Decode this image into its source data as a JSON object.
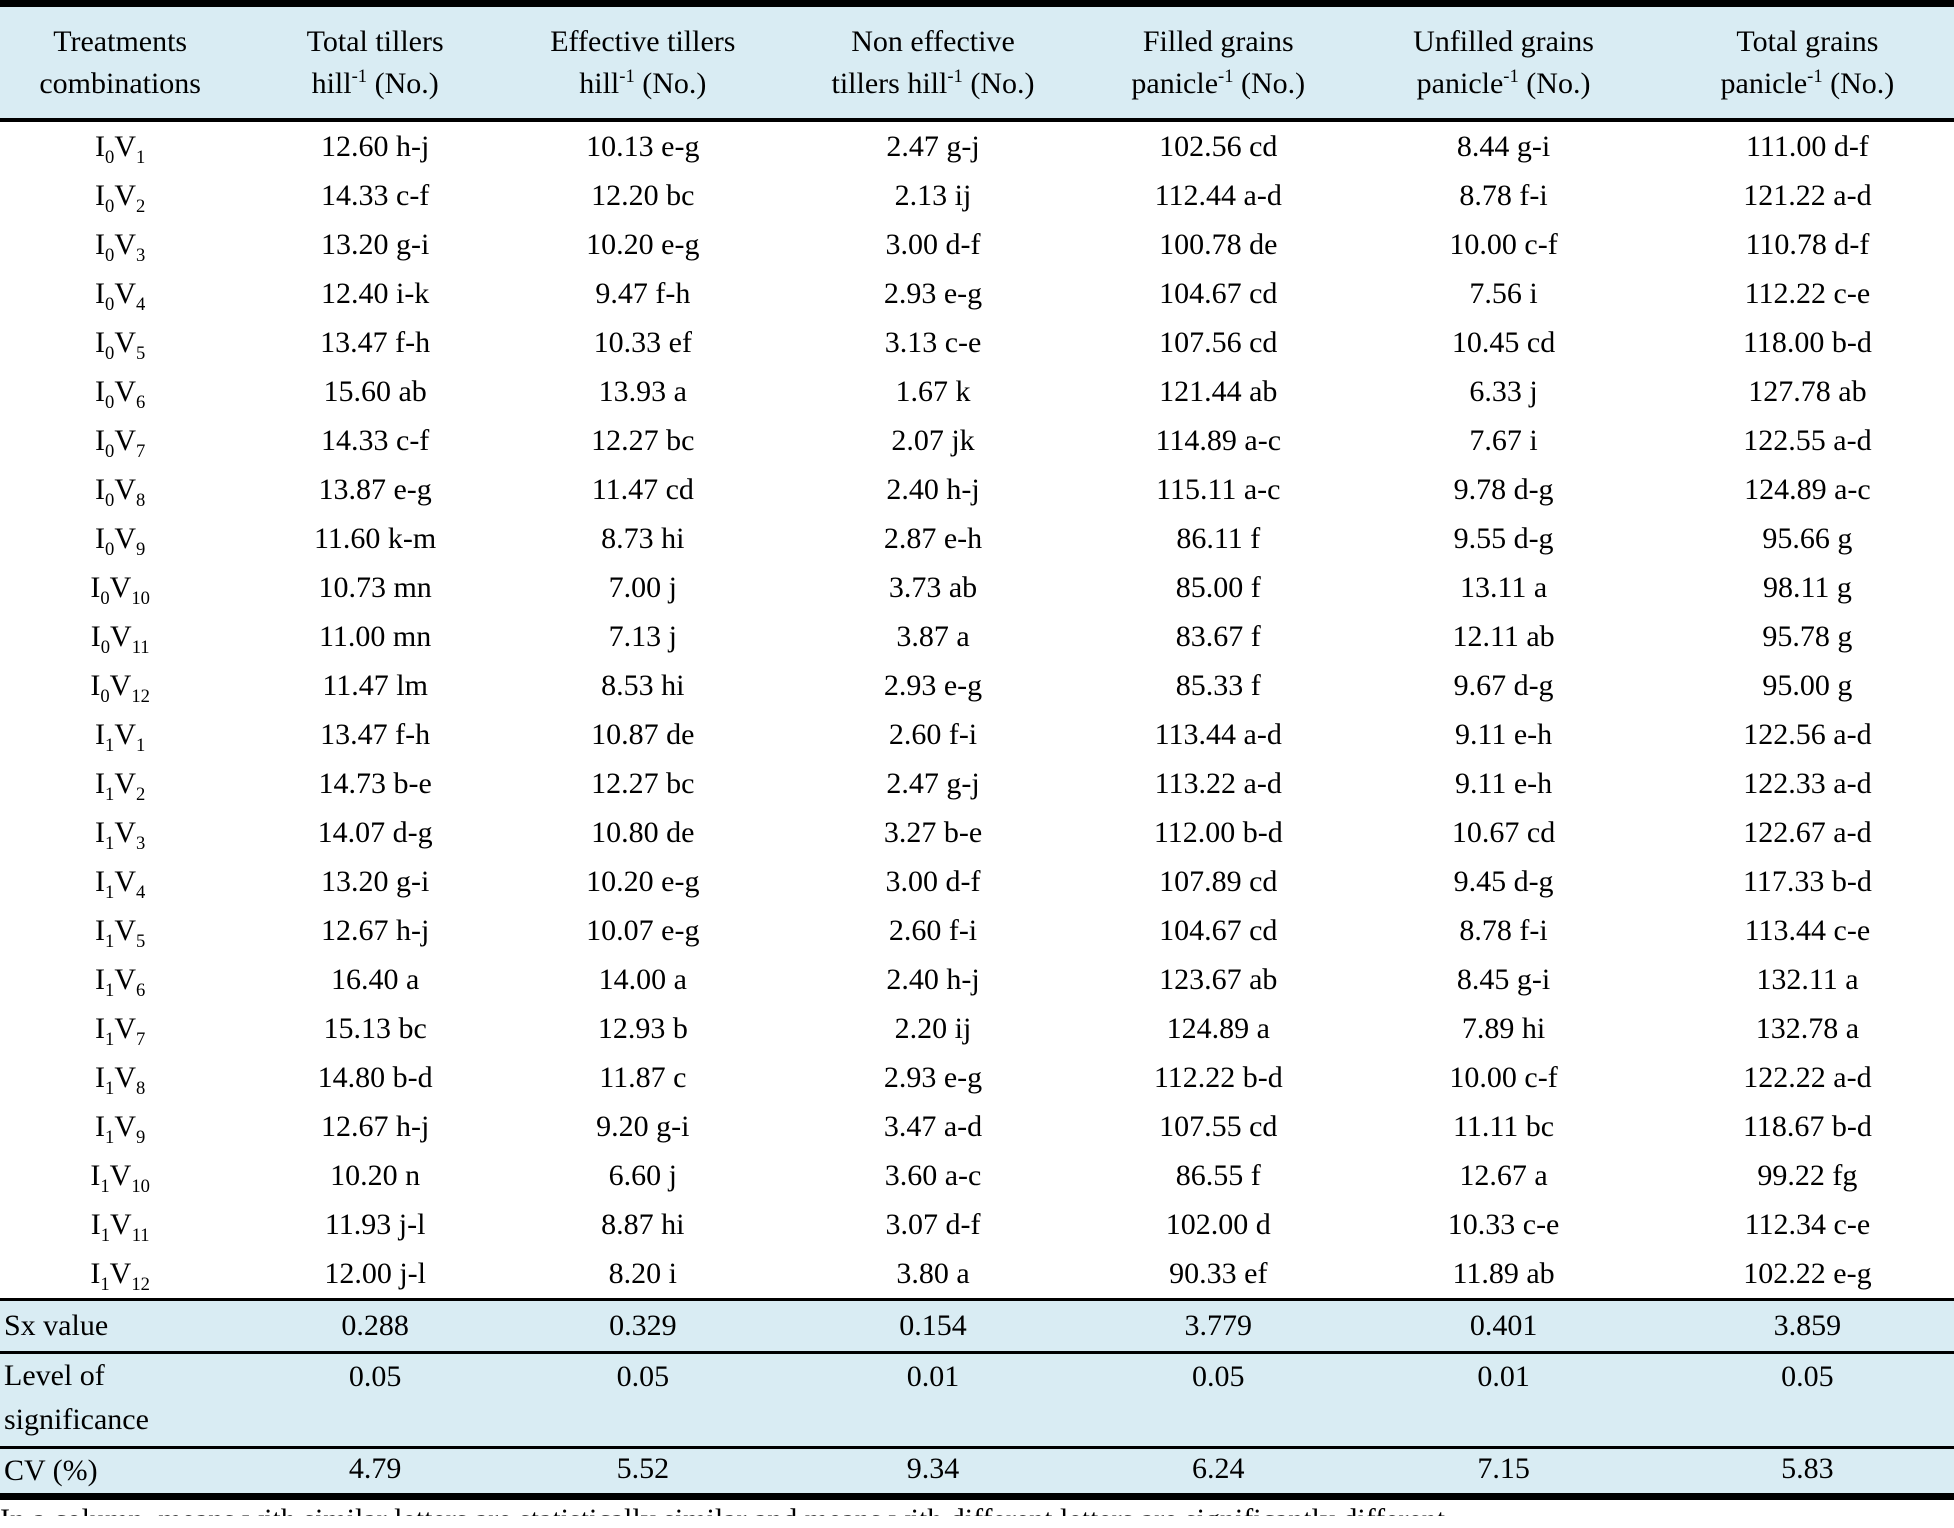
{
  "colors": {
    "header_bg": "#d9ecf3",
    "body_bg": "#ffffff",
    "rule": "#000000",
    "text": "#000000"
  },
  "table": {
    "columns": [
      {
        "line1": "Treatments",
        "line2": "combinations"
      },
      {
        "line1": "Total tillers",
        "line2": "hill{-1} (No.)"
      },
      {
        "line1": "Effective tillers",
        "line2": "hill{-1} (No.)"
      },
      {
        "line1": "Non effective",
        "line2": "tillers hill{-1} (No.)"
      },
      {
        "line1": "Filled grains",
        "line2": "panicle{-1} (No.)"
      },
      {
        "line1": "Unfilled grains",
        "line2": "panicle{-1} (No.)"
      },
      {
        "line1": "Total grains",
        "line2": "panicle{-1} (No.)"
      }
    ],
    "rows": [
      {
        "treatment": "I0V1",
        "values": [
          "12.60 h-j",
          "10.13 e-g",
          "2.47 g-j",
          "102.56 cd",
          "8.44 g-i",
          "111.00 d-f"
        ]
      },
      {
        "treatment": "I0V2",
        "values": [
          "14.33 c-f",
          "12.20 bc",
          "2.13 ij",
          "112.44 a-d",
          "8.78 f-i",
          "121.22 a-d"
        ]
      },
      {
        "treatment": "I0V3",
        "values": [
          "13.20 g-i",
          "10.20 e-g",
          "3.00 d-f",
          "100.78 de",
          "10.00 c-f",
          "110.78 d-f"
        ]
      },
      {
        "treatment": "I0V4",
        "values": [
          "12.40 i-k",
          "9.47 f-h",
          "2.93 e-g",
          "104.67 cd",
          "7.56 i",
          "112.22 c-e"
        ]
      },
      {
        "treatment": "I0V5",
        "values": [
          "13.47 f-h",
          "10.33 ef",
          "3.13 c-e",
          "107.56 cd",
          "10.45 cd",
          "118.00 b-d"
        ]
      },
      {
        "treatment": "I0V6",
        "values": [
          "15.60 ab",
          "13.93 a",
          "1.67 k",
          "121.44 ab",
          "6.33 j",
          "127.78 ab"
        ]
      },
      {
        "treatment": "I0V7",
        "values": [
          "14.33 c-f",
          "12.27 bc",
          "2.07 jk",
          "114.89 a-c",
          "7.67 i",
          "122.55 a-d"
        ]
      },
      {
        "treatment": "I0V8",
        "values": [
          "13.87 e-g",
          "11.47 cd",
          "2.40 h-j",
          "115.11 a-c",
          "9.78 d-g",
          "124.89 a-c"
        ]
      },
      {
        "treatment": "I0V9",
        "values": [
          "11.60 k-m",
          "8.73 hi",
          "2.87 e-h",
          "86.11 f",
          "9.55 d-g",
          "95.66 g"
        ]
      },
      {
        "treatment": "I0V10",
        "values": [
          "10.73 mn",
          "7.00 j",
          "3.73 ab",
          "85.00 f",
          "13.11 a",
          "98.11 g"
        ]
      },
      {
        "treatment": "I0V11",
        "values": [
          "11.00 mn",
          "7.13 j",
          "3.87 a",
          "83.67 f",
          "12.11 ab",
          "95.78 g"
        ]
      },
      {
        "treatment": "I0V12",
        "values": [
          "11.47 lm",
          "8.53 hi",
          "2.93 e-g",
          "85.33 f",
          "9.67 d-g",
          "95.00 g"
        ]
      },
      {
        "treatment": "I1V1",
        "values": [
          "13.47 f-h",
          "10.87 de",
          "2.60 f-i",
          "113.44 a-d",
          "9.11 e-h",
          "122.56 a-d"
        ]
      },
      {
        "treatment": "I1V2",
        "values": [
          "14.73 b-e",
          "12.27 bc",
          "2.47 g-j",
          "113.22 a-d",
          "9.11 e-h",
          "122.33 a-d"
        ]
      },
      {
        "treatment": "I1V3",
        "values": [
          "14.07 d-g",
          "10.80 de",
          "3.27 b-e",
          "112.00 b-d",
          "10.67 cd",
          "122.67 a-d"
        ]
      },
      {
        "treatment": "I1V4",
        "values": [
          "13.20 g-i",
          "10.20 e-g",
          "3.00 d-f",
          "107.89 cd",
          "9.45 d-g",
          "117.33 b-d"
        ]
      },
      {
        "treatment": "I1V5",
        "values": [
          "12.67 h-j",
          "10.07 e-g",
          "2.60 f-i",
          "104.67 cd",
          "8.78 f-i",
          "113.44 c-e"
        ]
      },
      {
        "treatment": "I1V6",
        "values": [
          "16.40 a",
          "14.00 a",
          "2.40 h-j",
          "123.67 ab",
          "8.45 g-i",
          "132.11 a"
        ]
      },
      {
        "treatment": "I1V7",
        "values": [
          "15.13 bc",
          "12.93 b",
          "2.20 ij",
          "124.89 a",
          "7.89 hi",
          "132.78 a"
        ]
      },
      {
        "treatment": "I1V8",
        "values": [
          "14.80 b-d",
          "11.87 c",
          "2.93 e-g",
          "112.22 b-d",
          "10.00 c-f",
          "122.22 a-d"
        ]
      },
      {
        "treatment": "I1V9",
        "values": [
          "12.67 h-j",
          "9.20 g-i",
          "3.47 a-d",
          "107.55 cd",
          "11.11 bc",
          "118.67 b-d"
        ]
      },
      {
        "treatment": "I1V10",
        "values": [
          "10.20 n",
          "6.60 j",
          "3.60 a-c",
          "86.55 f",
          "12.67 a",
          "99.22 fg"
        ]
      },
      {
        "treatment": "I1V11",
        "values": [
          "11.93 j-l",
          "8.87 hi",
          "3.07 d-f",
          "102.00 d",
          "10.33 c-e",
          "112.34 c-e"
        ]
      },
      {
        "treatment": "I1V12",
        "values": [
          "12.00 j-l",
          "8.20 i",
          "3.80 a",
          "90.33 ef",
          "11.89 ab",
          "102.22 e-g"
        ]
      }
    ],
    "footer_rows": [
      {
        "label": "Sx value",
        "values": [
          "0.288",
          "0.329",
          "0.154",
          "3.779",
          "0.401",
          "3.859"
        ]
      },
      {
        "label": "Level of significance",
        "values": [
          "0.05",
          "0.05",
          "0.01",
          "0.05",
          "0.01",
          "0.05"
        ]
      },
      {
        "label": "CV (%)",
        "values": [
          "4.79",
          "5.52",
          "9.34",
          "6.24",
          "7.15",
          "5.83"
        ]
      }
    ]
  },
  "caption_partial": "In a column, means with similar letters are statistically similar and means with different letters are significantly different"
}
